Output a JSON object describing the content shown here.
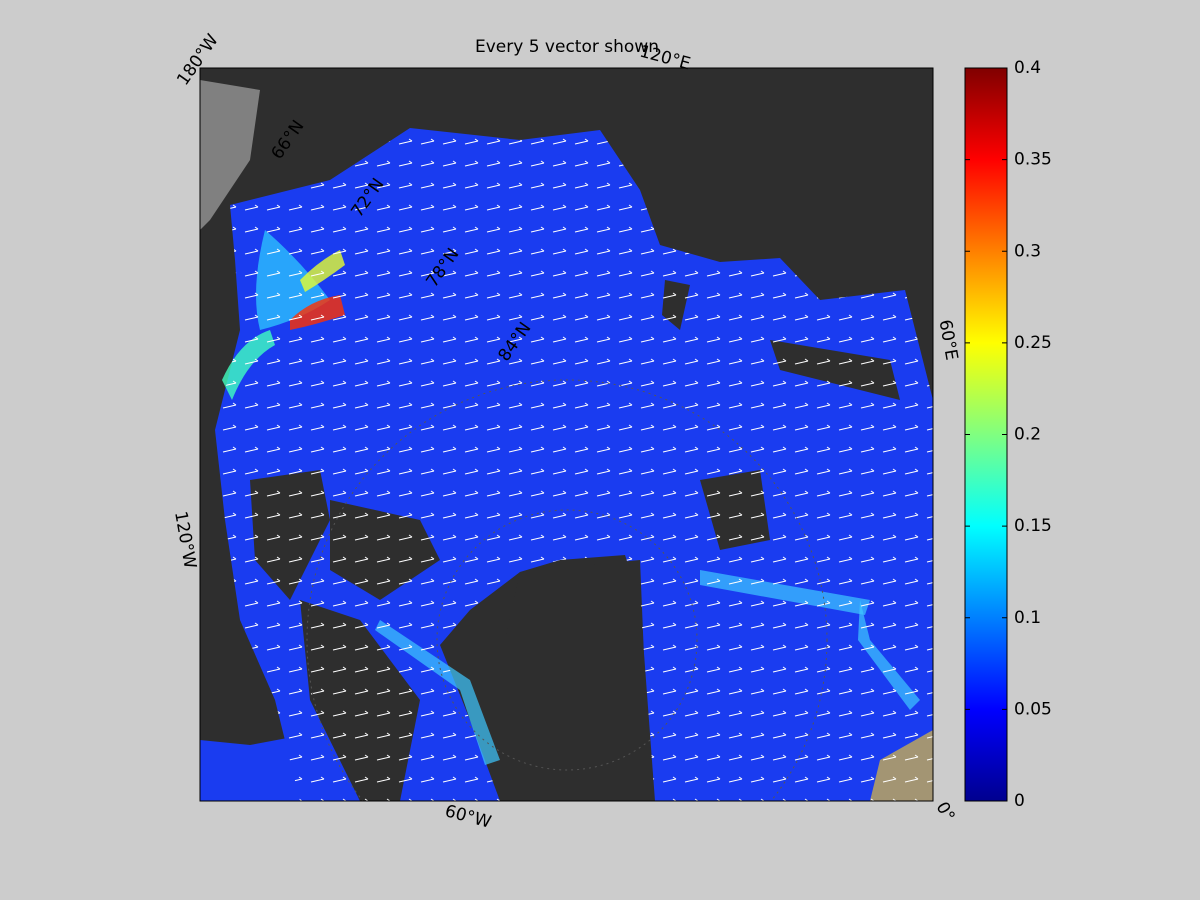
{
  "title": "Every 5 vector shown",
  "map": {
    "projection": "polar stereographic",
    "lon_labels": [
      "180°W",
      "120°E",
      "60°E",
      "0°",
      "60°W",
      "120°W"
    ],
    "lat_labels": [
      "66°N",
      "72°N",
      "78°N",
      "84°N"
    ]
  },
  "colorbar": {
    "colormap": "jet",
    "lim": [
      0,
      0.4
    ],
    "ticks": [
      0,
      0.05,
      0.1,
      0.15,
      0.2,
      0.25,
      0.3,
      0.35,
      0.4
    ]
  }
}
